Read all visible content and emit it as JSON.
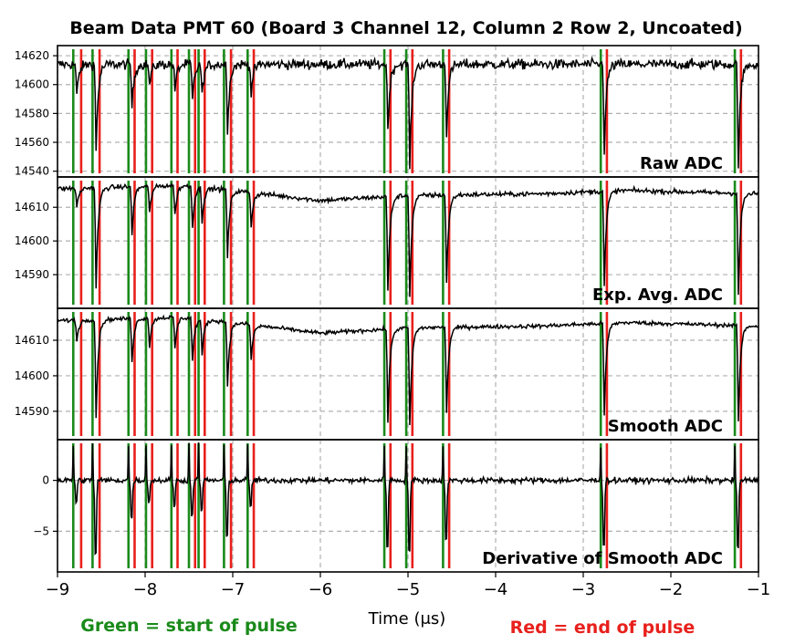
{
  "chart_data": {
    "type": "line",
    "title": "Beam Data PMT 60 (Board 3 Channel 12, Column 2 Row 2, Uncoated)",
    "xlabel": "Time (μs)",
    "xlim": [
      -9,
      -1
    ],
    "xticks": [
      -9,
      -8,
      -7,
      -6,
      -5,
      -4,
      -3,
      -2,
      -1
    ],
    "xtick_labels": [
      "−9",
      "−8",
      "−7",
      "−6",
      "−5",
      "−4",
      "−3",
      "−2",
      "−1"
    ],
    "grid": true,
    "legend_notes": {
      "start": "Green = start of pulse",
      "end": "Red = end of pulse"
    },
    "colors": {
      "trace": "#000000",
      "start_marker": "#1a8a1a",
      "end_marker": "#e8201c",
      "grid": "#b0b0b0"
    },
    "pulse_starts": [
      -8.82,
      -8.6,
      -8.19,
      -7.99,
      -7.7,
      -7.5,
      -7.39,
      -7.1,
      -6.83,
      -5.27,
      -5.02,
      -4.6,
      -2.8,
      -1.27
    ],
    "pulse_ends": [
      -8.73,
      -8.52,
      -8.12,
      -7.92,
      -7.63,
      -7.43,
      -7.32,
      -7.02,
      -6.76,
      -5.2,
      -4.95,
      -4.53,
      -2.73,
      -1.2
    ],
    "panels": [
      {
        "label": "Raw ADC",
        "ylim": [
          14536,
          14627
        ],
        "yticks": [
          14540,
          14560,
          14580,
          14600,
          14620
        ],
        "ytick_labels": [
          "14540",
          "14560",
          "14580",
          "14600",
          "14620"
        ],
        "baseline": 14614,
        "noise": 2.5,
        "drift": [],
        "dips": [
          -22,
          -60,
          -30,
          -15,
          -18,
          -25,
          -22,
          -45,
          -20,
          -45,
          -70,
          -48,
          -60,
          -70
        ]
      },
      {
        "label": "Exp. Avg. ADC",
        "ylim": [
          14580,
          14619
        ],
        "yticks": [
          14590,
          14600,
          14610
        ],
        "ytick_labels": [
          "14590",
          "14600",
          "14610"
        ],
        "baseline": 14614,
        "noise": 0.5,
        "drift": [
          [
            -9,
            1.5
          ],
          [
            -7.6,
            2.5
          ],
          [
            -7.0,
            1.0
          ],
          [
            -6.0,
            -2.0
          ],
          [
            -5.0,
            -0.5
          ],
          [
            -3.5,
            0.0
          ],
          [
            -2.5,
            1.0
          ],
          [
            -1,
            0.0
          ]
        ],
        "dips": [
          -6,
          -30,
          -14,
          -8,
          -9,
          -12,
          -10,
          -20,
          -10,
          -28,
          -30,
          -26,
          -28,
          -30
        ]
      },
      {
        "label": "Smooth ADC",
        "ylim": [
          14582,
          14619
        ],
        "yticks": [
          14590,
          14600,
          14610
        ],
        "ytick_labels": [
          "14590",
          "14600",
          "14610"
        ],
        "baseline": 14614,
        "noise": 0.4,
        "drift": [
          [
            -9,
            1.5
          ],
          [
            -7.6,
            2.5
          ],
          [
            -7.0,
            1.0
          ],
          [
            -6.0,
            -2.0
          ],
          [
            -5.0,
            -0.5
          ],
          [
            -3.5,
            0.0
          ],
          [
            -2.5,
            1.0
          ],
          [
            -1,
            0.0
          ]
        ],
        "dips": [
          -6,
          -28,
          -12,
          -8,
          -9,
          -12,
          -10,
          -18,
          -10,
          -26,
          -28,
          -24,
          -26,
          -27
        ]
      },
      {
        "label": "Derivative of Smooth ADC",
        "ylim": [
          -9,
          4
        ],
        "yticks": [
          -5,
          0
        ],
        "ytick_labels": [
          "−5",
          "0"
        ],
        "baseline": 0,
        "noise": 0.2,
        "drift": [],
        "dips": [
          -2.5,
          -8.5,
          -4.5,
          -2.5,
          -3,
          -4,
          -3.5,
          -6.5,
          -3,
          -7.5,
          -8,
          -7,
          -7.5,
          -8
        ]
      }
    ]
  }
}
